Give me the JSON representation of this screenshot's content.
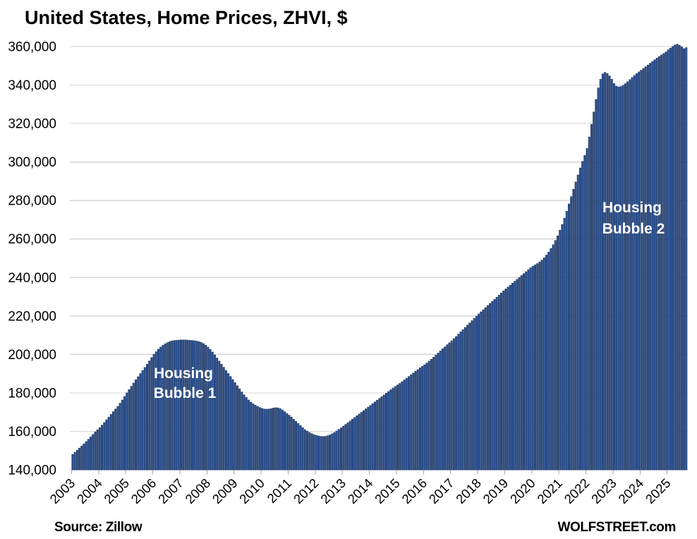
{
  "chart_data": {
    "type": "bar",
    "title": "United States, Home Prices, ZHVI, $",
    "source_note": "Source: Zillow",
    "brand": "WOLFSTREET.com",
    "frequency": "monthly",
    "start_month": "2003-01",
    "end_month": "2025-09",
    "xlabel": "",
    "ylabel": "",
    "grid": "horizontal",
    "legend": "none",
    "y_axis": {
      "min": 140000,
      "max": 360000,
      "step": 20000,
      "tick_labels": [
        "140,000",
        "160,000",
        "180,000",
        "200,000",
        "220,000",
        "240,000",
        "260,000",
        "280,000",
        "300,000",
        "320,000",
        "340,000",
        "360,000"
      ]
    },
    "x_axis": {
      "tick_labels": [
        "2003",
        "2004",
        "2005",
        "2006",
        "2007",
        "2008",
        "2009",
        "2010",
        "2011",
        "2012",
        "2013",
        "2014",
        "2015",
        "2016",
        "2017",
        "2018",
        "2019",
        "2020",
        "2021",
        "2022",
        "2023",
        "2024",
        "2025"
      ]
    },
    "annotations": [
      {
        "line1": "Housing",
        "line2": "Bubble 1"
      },
      {
        "line1": "Housing",
        "line2": "Bubble 2"
      }
    ],
    "colors": {
      "bar_fill": "#2F5597",
      "bar_border": "#1F3864",
      "grid": "#D6D6D6",
      "tick": "#A6A6A6",
      "background": "#FFFFFF",
      "annotation_text": "#FFFFFF",
      "axis_text": "#000000"
    },
    "series": [
      {
        "name": "ZHVI",
        "values": [
          148000,
          149100,
          150200,
          151300,
          152400,
          153500,
          154700,
          155900,
          157100,
          158400,
          159700,
          160800,
          161900,
          163200,
          164600,
          166000,
          167400,
          168800,
          170200,
          171600,
          173000,
          174600,
          176300,
          178100,
          180000,
          181700,
          183400,
          185100,
          186800,
          188400,
          190000,
          191600,
          193200,
          194900,
          196600,
          198300,
          200000,
          201400,
          202700,
          203800,
          204700,
          205500,
          206100,
          206600,
          207000,
          207200,
          207300,
          207400,
          207500,
          207500,
          207500,
          207400,
          207300,
          207200,
          207100,
          206900,
          206600,
          206200,
          205600,
          204800,
          203800,
          202600,
          201200,
          199700,
          198100,
          196500,
          194900,
          193300,
          191700,
          190100,
          188500,
          186900,
          185300,
          183700,
          182100,
          180500,
          179000,
          177600,
          176300,
          175200,
          174300,
          173600,
          173000,
          172400,
          171900,
          171600,
          171500,
          171600,
          171800,
          172100,
          172300,
          172200,
          171800,
          171100,
          170200,
          169300,
          168400,
          167400,
          166300,
          165200,
          164100,
          163000,
          161900,
          160900,
          160100,
          159400,
          158800,
          158300,
          157900,
          157600,
          157400,
          157300,
          157400,
          157700,
          158100,
          158700,
          159400,
          160200,
          161000,
          161800,
          162700,
          163600,
          164500,
          165400,
          166300,
          167200,
          168100,
          169000,
          169900,
          170800,
          171700,
          172600,
          173500,
          174400,
          175300,
          176200,
          177100,
          178000,
          178900,
          179800,
          180700,
          181600,
          182500,
          183300,
          184100,
          184900,
          185800,
          186700,
          187600,
          188500,
          189400,
          190300,
          191200,
          192100,
          193000,
          193800,
          194600,
          195500,
          196500,
          197500,
          198500,
          199600,
          200700,
          201800,
          202900,
          203900,
          205000,
          206000,
          207000,
          208200,
          209300,
          210500,
          211700,
          212800,
          214000,
          215200,
          216300,
          217500,
          218700,
          219800,
          221000,
          222100,
          223200,
          224300,
          225400,
          226500,
          227500,
          228600,
          229700,
          230800,
          231900,
          233000,
          234000,
          235000,
          236000,
          237000,
          238000,
          239000,
          240000,
          241000,
          242000,
          243000,
          244000,
          245000,
          245800,
          246500,
          247200,
          248000,
          249000,
          250200,
          251600,
          253200,
          255000,
          257000,
          259200,
          261600,
          264500,
          267500,
          270800,
          274400,
          278200,
          282000,
          285800,
          289600,
          293300,
          296900,
          300300,
          303400,
          307000,
          313000,
          319500,
          326000,
          332500,
          338500,
          343000,
          345800,
          346600,
          346000,
          344700,
          343000,
          340800,
          339400,
          339000,
          339200,
          339800,
          340700,
          341700,
          342800,
          343900,
          344900,
          345900,
          346800,
          347700,
          348600,
          349500,
          350400,
          351300,
          352200,
          353100,
          354000,
          354800,
          355600,
          356400,
          357200,
          358300,
          359200,
          360100,
          360800,
          361200,
          360700,
          359800,
          358900,
          359400
        ]
      }
    ]
  }
}
